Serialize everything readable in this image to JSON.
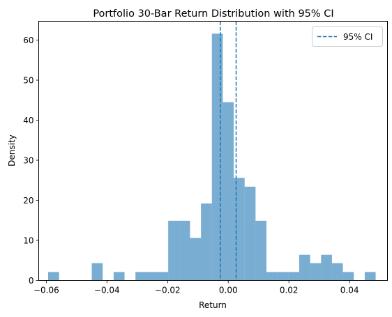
{
  "chart_data": {
    "type": "bar",
    "title": "Portfolio 30-Bar Return Distribution with 95% CI",
    "xlabel": "Return",
    "ylabel": "Density",
    "xlim": [
      -0.0625,
      0.0525
    ],
    "ylim": [
      0,
      64.7
    ],
    "x_ticks": [
      -0.06,
      -0.04,
      -0.02,
      0.0,
      0.02,
      0.04
    ],
    "x_tick_labels": [
      "−0.06",
      "−0.04",
      "−0.02",
      "0.00",
      "0.02",
      "0.04"
    ],
    "y_ticks": [
      0,
      10,
      20,
      30,
      40,
      50,
      60
    ],
    "y_tick_labels": [
      "0",
      "10",
      "20",
      "30",
      "40",
      "50",
      "60"
    ],
    "bin_edges": [
      -0.0594,
      -0.0558,
      -0.0522,
      -0.0486,
      -0.045,
      -0.0414,
      -0.0378,
      -0.0342,
      -0.0306,
      -0.027,
      -0.0234,
      -0.0198,
      -0.0162,
      -0.0126,
      -0.009,
      -0.0054,
      -0.0018,
      0.0018,
      0.0054,
      0.009,
      0.0126,
      0.0162,
      0.0198,
      0.0234,
      0.027,
      0.0306,
      0.0342,
      0.0378,
      0.0414,
      0.045,
      0.0486
    ],
    "values": [
      2.1,
      0,
      0,
      0,
      4.3,
      0,
      2.1,
      0,
      2.1,
      2.1,
      2.1,
      14.9,
      14.9,
      10.6,
      19.2,
      61.6,
      44.5,
      25.6,
      23.4,
      14.9,
      2.1,
      2.1,
      2.1,
      6.4,
      4.3,
      6.4,
      4.3,
      2.1,
      0,
      2.1
    ],
    "bar_color": "#1f77b4",
    "bar_opacity": 0.6,
    "ci_lines": [
      -0.0026,
      0.0026
    ],
    "ci_color": "#1f77b4",
    "legend": {
      "label": "95% CI",
      "placement": "upper right"
    },
    "grid": false
  }
}
